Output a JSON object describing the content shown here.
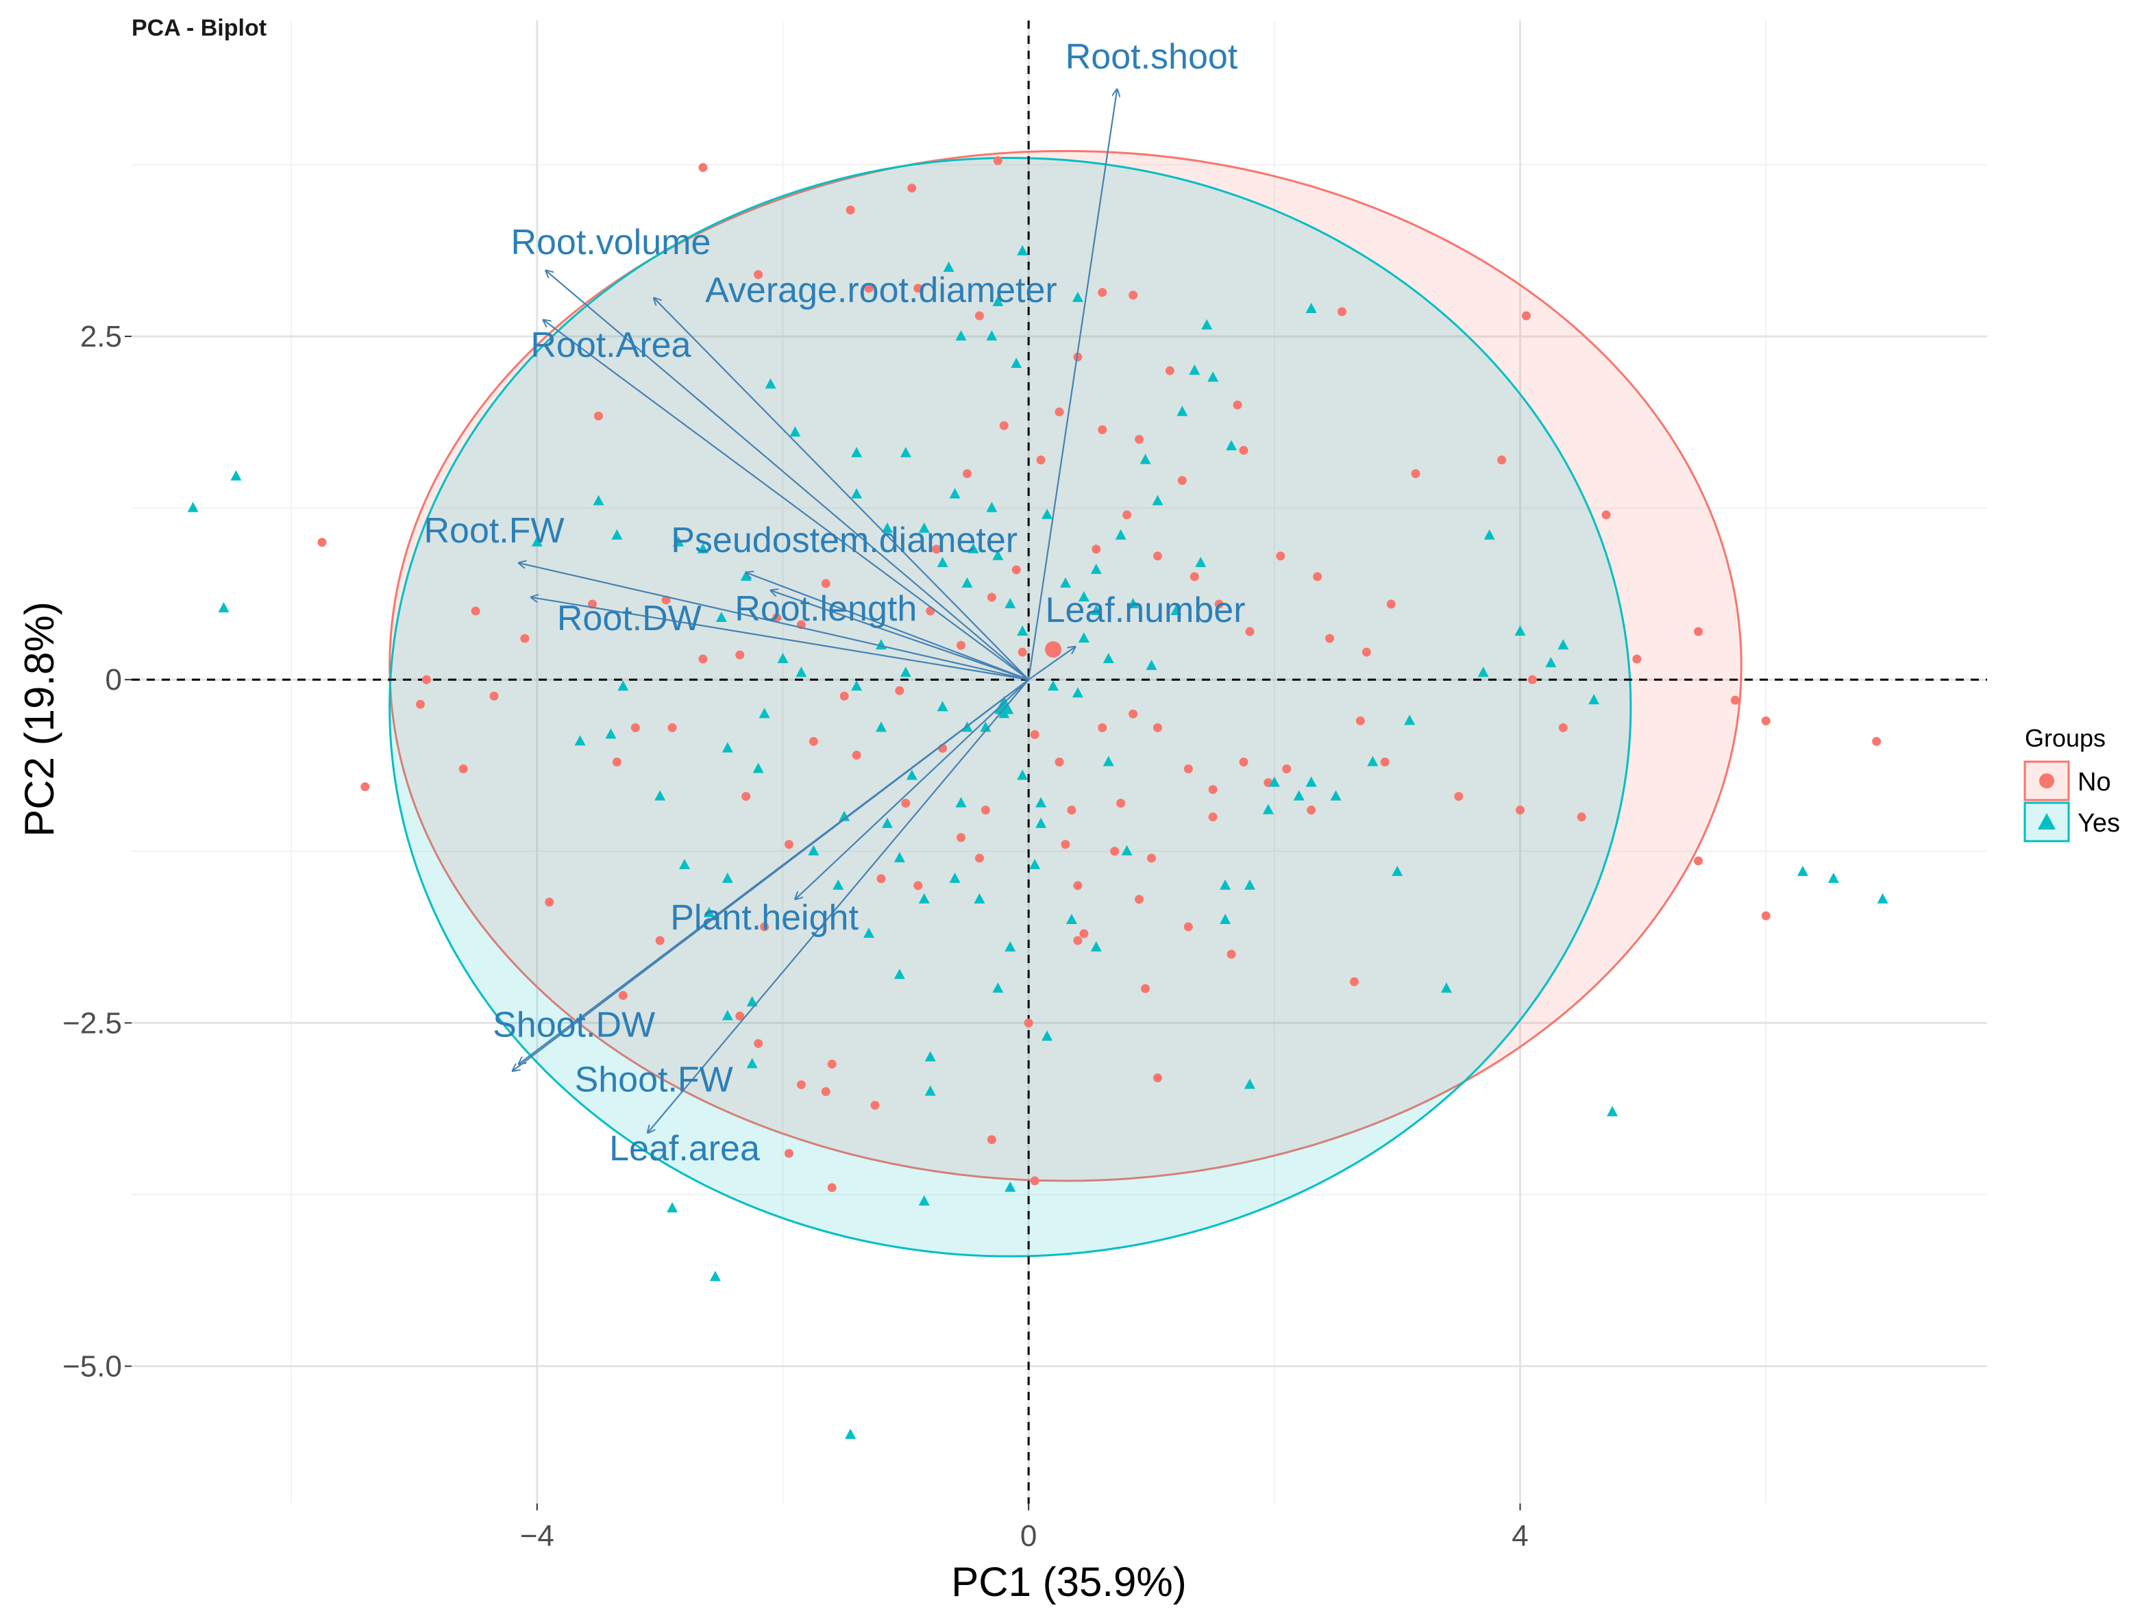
{
  "chart_data": {
    "type": "scatter",
    "subtype": "pca-biplot",
    "title": "PCA - Biplot",
    "xlabel": "PC1 (35.9%)",
    "ylabel": "PC2 (19.8%)",
    "xlim": [
      -7.3,
      7.8
    ],
    "ylim": [
      -6.0,
      4.8
    ],
    "xticks": [
      -4,
      0,
      4
    ],
    "xtick_labels": [
      "−4",
      "0",
      "4"
    ],
    "yticks": [
      -5.0,
      -2.5,
      0,
      2.5
    ],
    "ytick_labels": [
      "−5.0",
      "−2.5",
      "0",
      "2.5"
    ],
    "minor_xgrid": [
      -6,
      -2,
      2,
      6
    ],
    "minor_ygrid": [
      -3.75,
      -1.25,
      1.25,
      3.75
    ],
    "grid": true,
    "reference_lines": {
      "x": 0,
      "y": 0,
      "style": "dashed"
    },
    "legend": {
      "title": "Groups",
      "position": "right",
      "entries": [
        {
          "label": "No",
          "marker": "circle",
          "color": "#F8766D"
        },
        {
          "label": "Yes",
          "marker": "triangle",
          "color": "#00BFC4"
        }
      ]
    },
    "colors": {
      "no": "#F8766D",
      "yes": "#00BFC4",
      "arrow": "#4682B4",
      "label": "#2C7FB8",
      "ellipse_no_fill": "#F8766D",
      "ellipse_yes_fill": "#00BFC4"
    },
    "ellipses": [
      {
        "group": "No",
        "center": [
          0.3,
          0.1
        ],
        "radius_x": 5.5,
        "radius_y": 3.75
      },
      {
        "group": "Yes",
        "center": [
          -0.15,
          -0.2
        ],
        "radius_x": 5.05,
        "radius_y": 4.0
      }
    ],
    "group_centroids": [
      {
        "group": "No",
        "x": 0.2,
        "y": 0.22
      },
      {
        "group": "Yes",
        "x": -0.2,
        "y": -0.2
      }
    ],
    "variables": [
      {
        "name": "Root.shoot",
        "x": 0.72,
        "y": 4.3,
        "label_x": 1.0,
        "label_y": 4.45
      },
      {
        "name": "Root.volume",
        "x": -3.93,
        "y": 2.98,
        "label_x": -3.4,
        "label_y": 3.1
      },
      {
        "name": "Average.root.diameter",
        "x": -3.05,
        "y": 2.78,
        "label_x": -1.2,
        "label_y": 2.75
      },
      {
        "name": "Root.Area",
        "x": -3.95,
        "y": 2.62,
        "label_x": -3.4,
        "label_y": 2.35
      },
      {
        "name": "Root.FW",
        "x": -4.15,
        "y": 0.85,
        "label_x": -4.35,
        "label_y": 1.0
      },
      {
        "name": "Pseudostem.diameter",
        "x": -2.3,
        "y": 0.78,
        "label_x": -1.5,
        "label_y": 0.93
      },
      {
        "name": "Root.DW",
        "x": -4.05,
        "y": 0.6,
        "label_x": -3.25,
        "label_y": 0.36
      },
      {
        "name": "Root.length",
        "x": -2.1,
        "y": 0.65,
        "label_x": -1.65,
        "label_y": 0.43
      },
      {
        "name": "Leaf.number",
        "x": 0.38,
        "y": 0.24,
        "label_x": 0.95,
        "label_y": 0.42
      },
      {
        "name": "Plant.height",
        "x": -1.9,
        "y": -1.6,
        "label_x": -2.15,
        "label_y": -1.82
      },
      {
        "name": "Shoot.DW",
        "x": -4.15,
        "y": -2.8,
        "label_x": -3.7,
        "label_y": -2.6
      },
      {
        "name": "Shoot.FW",
        "x": -4.2,
        "y": -2.85,
        "label_x": -3.05,
        "label_y": -3.0
      },
      {
        "name": "Leaf.area",
        "x": -3.1,
        "y": -3.3,
        "label_x": -2.8,
        "label_y": -3.5
      }
    ],
    "series": [
      {
        "name": "No",
        "marker": "circle",
        "points": [
          [
            -2.65,
            3.73
          ],
          [
            -0.25,
            3.78
          ],
          [
            -0.95,
            3.58
          ],
          [
            -1.45,
            3.42
          ],
          [
            -2.2,
            2.95
          ],
          [
            -1.3,
            2.85
          ],
          [
            -0.9,
            2.85
          ],
          [
            -0.4,
            2.65
          ],
          [
            0.6,
            2.82
          ],
          [
            0.85,
            2.8
          ],
          [
            -3.5,
            1.92
          ],
          [
            -5.75,
            1.0
          ],
          [
            -4.5,
            0.5
          ],
          [
            -4.9,
            0.0
          ],
          [
            -4.95,
            -0.18
          ],
          [
            -4.35,
            -0.12
          ],
          [
            -5.4,
            -0.78
          ],
          [
            -4.6,
            -0.65
          ],
          [
            -4.1,
            0.3
          ],
          [
            -3.55,
            0.55
          ],
          [
            -3.2,
            -0.35
          ],
          [
            -2.95,
            0.58
          ],
          [
            -2.35,
            0.18
          ],
          [
            -1.85,
            0.4
          ],
          [
            -1.5,
            -0.12
          ],
          [
            -1.05,
            -0.08
          ],
          [
            -2.65,
            0.15
          ],
          [
            -2.05,
            0.45
          ],
          [
            -1.65,
            0.7
          ],
          [
            -0.75,
            0.95
          ],
          [
            -0.5,
            1.5
          ],
          [
            -0.2,
            1.85
          ],
          [
            0.1,
            1.6
          ],
          [
            0.25,
            1.95
          ],
          [
            0.4,
            2.35
          ],
          [
            0.6,
            1.82
          ],
          [
            0.8,
            1.2
          ],
          [
            1.05,
            0.9
          ],
          [
            1.25,
            1.45
          ],
          [
            1.35,
            0.75
          ],
          [
            1.55,
            0.55
          ],
          [
            1.8,
            0.35
          ],
          [
            2.05,
            0.9
          ],
          [
            2.35,
            0.75
          ],
          [
            2.45,
            0.3
          ],
          [
            2.75,
            0.2
          ],
          [
            2.95,
            0.55
          ],
          [
            3.15,
            1.5
          ],
          [
            3.85,
            1.6
          ],
          [
            4.05,
            2.65
          ],
          [
            2.55,
            2.68
          ],
          [
            1.7,
            2.0
          ],
          [
            1.75,
            1.67
          ],
          [
            0.9,
            1.75
          ],
          [
            1.15,
            2.25
          ],
          [
            -0.05,
            0.2
          ],
          [
            0.05,
            -0.4
          ],
          [
            0.25,
            -0.6
          ],
          [
            0.6,
            -0.35
          ],
          [
            0.85,
            -0.25
          ],
          [
            1.05,
            -0.35
          ],
          [
            1.3,
            -0.65
          ],
          [
            1.5,
            -0.8
          ],
          [
            1.75,
            -0.6
          ],
          [
            1.95,
            -0.75
          ],
          [
            2.1,
            -0.65
          ],
          [
            2.3,
            -0.95
          ],
          [
            2.7,
            -0.3
          ],
          [
            2.9,
            -0.6
          ],
          [
            3.5,
            -0.85
          ],
          [
            4.0,
            -0.95
          ],
          [
            4.5,
            -1.0
          ],
          [
            4.1,
            0.0
          ],
          [
            4.35,
            -0.35
          ],
          [
            4.7,
            1.2
          ],
          [
            4.95,
            0.15
          ],
          [
            5.45,
            0.35
          ],
          [
            5.75,
            -0.15
          ],
          [
            6.0,
            -0.3
          ],
          [
            6.9,
            -0.45
          ],
          [
            5.45,
            -1.32
          ],
          [
            6.0,
            -1.72
          ],
          [
            -0.4,
            -1.3
          ],
          [
            -0.9,
            -1.5
          ],
          [
            -1.2,
            -1.45
          ],
          [
            0.3,
            -1.2
          ],
          [
            0.4,
            -1.5
          ],
          [
            0.7,
            -1.25
          ],
          [
            0.9,
            -1.6
          ],
          [
            0.45,
            -1.85
          ],
          [
            0.4,
            -1.9
          ],
          [
            1.0,
            -1.3
          ],
          [
            1.3,
            -1.8
          ],
          [
            1.65,
            -2.0
          ],
          [
            0.95,
            -2.25
          ],
          [
            1.05,
            -2.9
          ],
          [
            2.65,
            -2.2
          ],
          [
            0.0,
            -2.5
          ],
          [
            -1.95,
            -1.2
          ],
          [
            -2.15,
            -1.8
          ],
          [
            -2.35,
            -2.45
          ],
          [
            -2.2,
            -2.65
          ],
          [
            -1.6,
            -2.8
          ],
          [
            -1.65,
            -3.0
          ],
          [
            -1.25,
            -3.1
          ],
          [
            -1.85,
            -2.95
          ],
          [
            -1.95,
            -3.45
          ],
          [
            -1.6,
            -3.7
          ],
          [
            -3.3,
            -2.3
          ],
          [
            -3.0,
            -1.9
          ],
          [
            -3.9,
            -1.62
          ],
          [
            -3.35,
            -0.6
          ],
          [
            -2.9,
            -0.35
          ],
          [
            -2.3,
            -0.85
          ],
          [
            -1.75,
            -0.45
          ],
          [
            -0.7,
            -0.5
          ],
          [
            -0.35,
            -0.95
          ],
          [
            -0.55,
            -1.15
          ],
          [
            -1.0,
            -0.9
          ],
          [
            -1.4,
            -0.55
          ],
          [
            -0.3,
            -3.35
          ],
          [
            0.05,
            -3.65
          ],
          [
            -0.55,
            0.25
          ],
          [
            -0.1,
            0.8
          ],
          [
            0.55,
            0.95
          ],
          [
            0.75,
            -0.9
          ],
          [
            0.35,
            -0.95
          ],
          [
            -0.8,
            0.5
          ],
          [
            -0.3,
            0.6
          ],
          [
            1.5,
            -1.0
          ]
        ]
      },
      {
        "name": "Yes",
        "marker": "triangle",
        "points": [
          [
            -6.8,
            1.25
          ],
          [
            -6.45,
            1.48
          ],
          [
            -6.55,
            0.52
          ],
          [
            -3.5,
            1.3
          ],
          [
            -3.35,
            1.05
          ],
          [
            -3.3,
            -0.05
          ],
          [
            -3.4,
            -0.4
          ],
          [
            -3.65,
            -0.45
          ],
          [
            -4.0,
            1.0
          ],
          [
            -2.85,
            1.0
          ],
          [
            -2.65,
            0.95
          ],
          [
            -2.3,
            0.75
          ],
          [
            -0.65,
            3.0
          ],
          [
            -0.05,
            3.12
          ],
          [
            -0.25,
            2.75
          ],
          [
            0.4,
            2.78
          ],
          [
            -0.55,
            2.5
          ],
          [
            -0.3,
            2.5
          ],
          [
            -0.1,
            2.3
          ],
          [
            2.3,
            2.7
          ],
          [
            1.45,
            2.58
          ],
          [
            1.5,
            2.2
          ],
          [
            1.35,
            2.25
          ],
          [
            1.25,
            1.95
          ],
          [
            1.65,
            1.7
          ],
          [
            1.05,
            1.3
          ],
          [
            0.75,
            1.05
          ],
          [
            0.55,
            0.5
          ],
          [
            -1.0,
            1.65
          ],
          [
            -1.4,
            1.65
          ],
          [
            -0.6,
            1.35
          ],
          [
            -0.3,
            1.25
          ],
          [
            0.15,
            1.2
          ],
          [
            -0.85,
            1.1
          ],
          [
            -0.45,
            0.95
          ],
          [
            -0.15,
            0.55
          ],
          [
            0.3,
            0.7
          ],
          [
            0.45,
            0.3
          ],
          [
            0.65,
            0.15
          ],
          [
            1.0,
            0.1
          ],
          [
            -2.1,
            2.15
          ],
          [
            -1.9,
            1.8
          ],
          [
            -1.4,
            1.35
          ],
          [
            -1.15,
            1.1
          ],
          [
            -0.7,
            0.85
          ],
          [
            -0.5,
            0.7
          ],
          [
            -2.5,
            0.45
          ],
          [
            -2.0,
            0.15
          ],
          [
            -1.85,
            0.05
          ],
          [
            -1.2,
            0.25
          ],
          [
            -1.0,
            0.05
          ],
          [
            -0.7,
            -0.2
          ],
          [
            -0.5,
            -0.35
          ],
          [
            -1.2,
            -0.35
          ],
          [
            -1.4,
            -0.05
          ],
          [
            -2.15,
            -0.25
          ],
          [
            -2.45,
            -0.5
          ],
          [
            -2.2,
            -0.65
          ],
          [
            -3.0,
            -0.85
          ],
          [
            -2.8,
            -1.35
          ],
          [
            -2.45,
            -1.45
          ],
          [
            -2.6,
            -1.7
          ],
          [
            -2.25,
            -2.35
          ],
          [
            -2.45,
            -2.45
          ],
          [
            -2.25,
            -2.8
          ],
          [
            -1.55,
            -1.5
          ],
          [
            -1.3,
            -1.85
          ],
          [
            -1.05,
            -2.15
          ],
          [
            -0.85,
            -1.6
          ],
          [
            -0.6,
            -1.45
          ],
          [
            -0.4,
            -1.6
          ],
          [
            -0.25,
            -2.25
          ],
          [
            -0.15,
            -1.95
          ],
          [
            -0.8,
            -2.75
          ],
          [
            -0.8,
            -3.0
          ],
          [
            0.05,
            -1.35
          ],
          [
            0.35,
            -1.75
          ],
          [
            0.55,
            -1.95
          ],
          [
            0.15,
            -2.6
          ],
          [
            1.6,
            -1.5
          ],
          [
            1.6,
            -1.75
          ],
          [
            1.8,
            -1.5
          ],
          [
            2.0,
            -0.75
          ],
          [
            2.2,
            -0.85
          ],
          [
            2.5,
            -0.85
          ],
          [
            2.8,
            -0.6
          ],
          [
            3.1,
            -0.3
          ],
          [
            3.7,
            0.05
          ],
          [
            3.75,
            1.05
          ],
          [
            4.0,
            0.35
          ],
          [
            4.35,
            0.25
          ],
          [
            4.6,
            -0.15
          ],
          [
            4.25,
            0.12
          ],
          [
            6.3,
            -1.4
          ],
          [
            6.55,
            -1.45
          ],
          [
            6.95,
            -1.6
          ],
          [
            3.0,
            -1.4
          ],
          [
            3.4,
            -2.25
          ],
          [
            4.75,
            -3.15
          ],
          [
            1.8,
            -2.95
          ],
          [
            -2.9,
            -3.85
          ],
          [
            -2.55,
            -4.35
          ],
          [
            -1.45,
            -5.5
          ],
          [
            -0.85,
            -3.8
          ],
          [
            -0.15,
            -3.7
          ],
          [
            0.1,
            -1.05
          ],
          [
            0.8,
            -1.25
          ],
          [
            0.65,
            -0.6
          ],
          [
            0.4,
            -0.1
          ],
          [
            0.2,
            -0.05
          ],
          [
            1.95,
            -0.95
          ],
          [
            2.3,
            -0.75
          ],
          [
            0.85,
            0.55
          ],
          [
            1.2,
            0.5
          ],
          [
            0.45,
            0.6
          ],
          [
            -0.25,
            0.9
          ],
          [
            -0.05,
            0.35
          ],
          [
            0.55,
            0.8
          ],
          [
            0.95,
            1.6
          ],
          [
            1.4,
            0.85
          ],
          [
            -0.35,
            -0.35
          ],
          [
            -0.2,
            -0.25
          ],
          [
            -0.05,
            -0.7
          ],
          [
            0.1,
            -0.9
          ],
          [
            -0.55,
            -0.9
          ],
          [
            -1.15,
            -1.05
          ],
          [
            -1.5,
            -1.0
          ],
          [
            -1.75,
            -1.25
          ],
          [
            -1.05,
            -1.3
          ],
          [
            -0.95,
            -0.7
          ]
        ]
      }
    ]
  }
}
